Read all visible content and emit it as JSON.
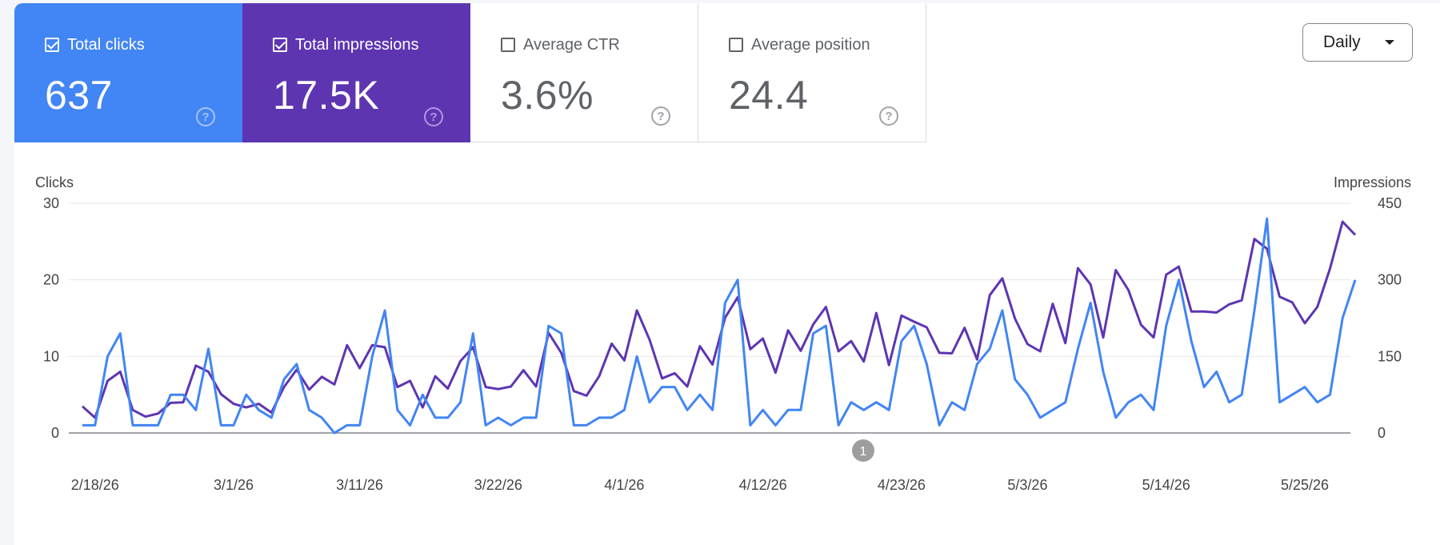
{
  "metrics": [
    {
      "key": "clicks",
      "label": "Total clicks",
      "value": "637",
      "checked": true,
      "color": "#4285f4"
    },
    {
      "key": "impressions",
      "label": "Total impressions",
      "value": "17.5K",
      "checked": true,
      "color": "#5e35b1"
    },
    {
      "key": "ctr",
      "label": "Average CTR",
      "value": "3.6%",
      "checked": false
    },
    {
      "key": "position",
      "label": "Average position",
      "value": "24.4",
      "checked": false
    }
  ],
  "help_glyph": "?",
  "granularity": {
    "selected": "Daily"
  },
  "annotation_marker": "1",
  "chart_data": {
    "type": "line",
    "left_axis": {
      "label": "Clicks",
      "ticks": [
        "0",
        "10",
        "20",
        "30"
      ],
      "ylim": [
        0,
        30
      ]
    },
    "right_axis": {
      "label": "Impressions",
      "ticks": [
        "0",
        "150",
        "300",
        "450"
      ],
      "ylim": [
        0,
        450
      ]
    },
    "x_tick_labels": [
      "2/18/26",
      "3/1/26",
      "3/11/26",
      "3/22/26",
      "4/1/26",
      "4/12/26",
      "4/23/26",
      "5/3/26",
      "5/14/26",
      "5/25/26"
    ],
    "x_tick_indices": [
      1,
      12,
      22,
      33,
      43,
      54,
      65,
      75,
      86,
      97
    ],
    "x_start": "2/17/26",
    "grid": true,
    "series": [
      {
        "name": "Clicks",
        "axis": "left",
        "color": "#4285f4",
        "values": [
          1,
          1,
          10,
          13,
          1,
          1,
          1,
          5,
          5,
          3,
          11,
          1,
          1,
          5,
          3,
          2,
          7,
          9,
          3,
          2,
          0,
          1,
          1,
          10,
          16,
          3,
          1,
          5,
          2,
          2,
          4,
          13,
          1,
          2,
          1,
          2,
          2,
          14,
          13,
          1,
          1,
          2,
          2,
          3,
          10,
          4,
          6,
          6,
          3,
          5,
          3,
          17,
          20,
          1,
          3,
          1,
          3,
          3,
          13,
          14,
          1,
          4,
          3,
          4,
          3,
          12,
          14,
          9,
          1,
          4,
          3,
          9,
          11,
          16,
          7,
          5,
          2,
          3,
          4,
          11,
          17,
          8,
          2,
          4,
          5,
          3,
          14,
          20,
          12,
          6,
          8,
          4,
          5,
          16,
          28,
          4,
          5,
          6,
          4,
          5,
          15,
          20
        ]
      },
      {
        "name": "Impressions",
        "axis": "right",
        "color": "#5e35b1",
        "values": [
          52,
          30,
          102,
          120,
          45,
          32,
          38,
          59,
          60,
          132,
          120,
          76,
          57,
          50,
          57,
          40,
          90,
          124,
          85,
          110,
          95,
          172,
          127,
          172,
          168,
          90,
          102,
          50,
          111,
          87,
          141,
          168,
          90,
          86,
          91,
          123,
          91,
          196,
          157,
          82,
          73,
          111,
          175,
          142,
          240,
          183,
          107,
          117,
          91,
          170,
          134,
          226,
          266,
          164,
          185,
          118,
          201,
          161,
          213,
          247,
          160,
          180,
          140,
          235,
          133,
          230,
          218,
          207,
          157,
          156,
          206,
          144,
          270,
          303,
          224,
          174,
          160,
          253,
          176,
          323,
          291,
          187,
          319,
          280,
          212,
          187,
          310,
          326,
          238,
          238,
          236,
          252,
          260,
          380,
          361,
          267,
          256,
          215,
          247,
          322,
          414,
          388
        ]
      }
    ]
  }
}
